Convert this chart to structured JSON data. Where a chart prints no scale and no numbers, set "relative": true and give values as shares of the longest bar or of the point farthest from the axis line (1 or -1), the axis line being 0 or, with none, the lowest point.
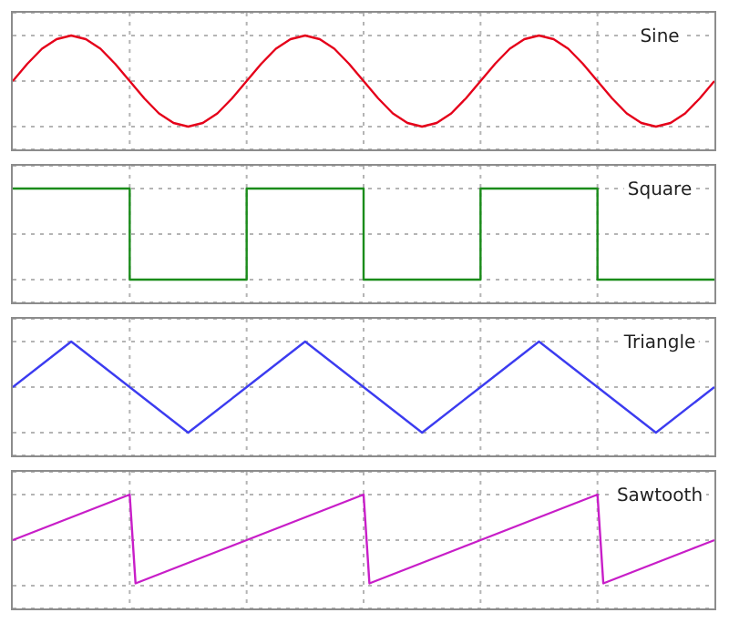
{
  "chart_data": [
    {
      "type": "line",
      "relative": true,
      "title": "Sine",
      "categories": [
        null,
        null,
        null,
        null,
        null,
        null,
        null,
        null,
        null,
        null,
        null,
        null,
        null,
        null,
        null,
        null,
        null,
        null,
        null,
        null,
        null,
        null,
        null,
        null,
        null,
        null,
        null,
        null,
        null,
        null,
        null,
        null,
        null,
        null,
        null,
        null,
        null,
        null,
        null,
        null,
        null,
        null,
        null,
        null,
        null,
        null,
        null,
        null,
        null
      ],
      "series": [
        {
          "color": "#e5001a",
          "values": [
            0,
            0.38,
            0.71,
            0.92,
            1,
            0.92,
            0.71,
            0.38,
            0,
            -0.38,
            -0.71,
            -0.92,
            -1,
            -0.92,
            -0.71,
            -0.38,
            0,
            0.38,
            0.71,
            0.92,
            1,
            0.92,
            0.71,
            0.38,
            0,
            -0.38,
            -0.71,
            -0.92,
            -1,
            -0.92,
            -0.71,
            -0.38,
            0,
            0.38,
            0.71,
            0.92,
            1,
            0.92,
            0.71,
            0.38,
            0,
            -0.38,
            -0.71,
            -0.92,
            -1,
            -0.92,
            -0.71,
            -0.38,
            0
          ]
        }
      ],
      "tick_labels": false,
      "grid": true
    },
    {
      "type": "step",
      "relative": true,
      "title": "Square",
      "categories": [
        null,
        null,
        null,
        null,
        null,
        null,
        null
      ],
      "series": [
        {
          "color": "#1a8c1a",
          "values": [
            1,
            -1,
            1,
            -1,
            1,
            -1,
            -1
          ]
        }
      ],
      "tick_labels": false,
      "grid": true
    },
    {
      "type": "line",
      "relative": true,
      "title": "Triangle",
      "categories": [
        null,
        null,
        null,
        null,
        null,
        null,
        null,
        null,
        null,
        null,
        null,
        null,
        null
      ],
      "series": [
        {
          "color": "#3c3cf0",
          "values": [
            0,
            1,
            0,
            -1,
            0,
            1,
            0,
            -1,
            0,
            1,
            0,
            -1,
            0
          ]
        }
      ],
      "tick_labels": false,
      "grid": true
    },
    {
      "type": "line",
      "relative": true,
      "title": "Sawtooth",
      "categories": [
        null,
        null,
        null,
        null,
        null,
        null,
        null,
        null,
        null,
        null,
        null,
        null,
        null,
        null,
        null,
        null,
        null,
        null,
        null,
        null,
        null,
        null,
        null,
        null,
        null,
        null,
        null,
        null,
        null,
        null,
        null,
        null,
        null,
        null,
        null,
        null,
        null,
        null,
        null,
        null,
        null,
        null,
        null,
        null,
        null,
        null,
        null,
        null,
        null,
        null,
        null,
        null,
        null,
        null,
        null,
        null,
        null,
        null,
        null,
        null,
        null,
        null,
        null,
        null,
        null,
        null,
        null,
        null,
        null,
        null,
        null,
        null,
        null,
        null,
        null,
        null,
        null,
        null,
        null,
        null,
        null,
        null,
        null,
        null,
        null,
        null,
        null,
        null,
        null,
        null,
        null,
        null,
        null,
        null,
        null,
        null,
        null,
        null,
        null,
        null,
        null,
        null,
        null,
        null,
        null,
        null,
        null,
        null,
        null,
        null,
        null,
        null,
        null,
        null,
        null,
        null,
        null,
        null,
        null,
        null,
        null
      ],
      "series": [
        {
          "color": "#c81ec8",
          "values": [
            0,
            0.05,
            0.1,
            0.15,
            0.2,
            0.25,
            0.3,
            0.35,
            0.4,
            0.45,
            0.5,
            0.55,
            0.6,
            0.65,
            0.7,
            0.75,
            0.8,
            0.85,
            0.9,
            0.95,
            1,
            -0.95,
            -0.9,
            -0.85,
            -0.8,
            -0.75,
            -0.7,
            -0.65,
            -0.6,
            -0.55,
            -0.5,
            -0.45,
            -0.4,
            -0.35,
            -0.3,
            -0.25,
            -0.2,
            -0.15,
            -0.1,
            -0.05,
            0,
            0.05,
            0.1,
            0.15,
            0.2,
            0.25,
            0.3,
            0.35,
            0.4,
            0.45,
            0.5,
            0.55,
            0.6,
            0.65,
            0.7,
            0.75,
            0.8,
            0.85,
            0.9,
            0.95,
            1,
            -0.95,
            -0.9,
            -0.85,
            -0.8,
            -0.75,
            -0.7,
            -0.65,
            -0.6,
            -0.55,
            -0.5,
            -0.45,
            -0.4,
            -0.35,
            -0.3,
            -0.25,
            -0.2,
            -0.15,
            -0.1,
            -0.05,
            0,
            0.05,
            0.1,
            0.15,
            0.2,
            0.25,
            0.3,
            0.35,
            0.4,
            0.45,
            0.5,
            0.55,
            0.6,
            0.65,
            0.7,
            0.75,
            0.8,
            0.85,
            0.9,
            0.95,
            1,
            -0.95,
            -0.9,
            -0.85,
            -0.8,
            -0.75,
            -0.7,
            -0.65,
            -0.6,
            -0.55,
            -0.5,
            -0.45,
            -0.4,
            -0.35,
            -0.3,
            -0.25,
            -0.2,
            -0.15,
            -0.1,
            -0.05,
            0
          ]
        }
      ],
      "tick_labels": false,
      "grid": true
    }
  ]
}
